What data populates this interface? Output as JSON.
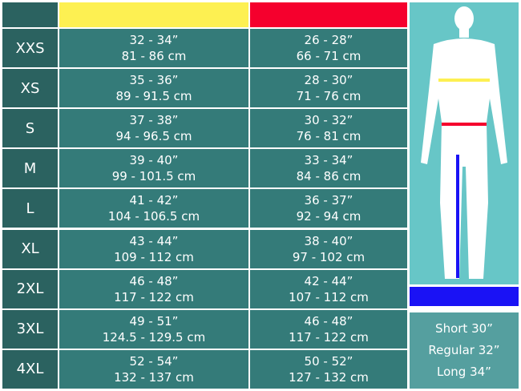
{
  "header": {
    "chest_color": "#fdf052",
    "waist_color": "#f5002d"
  },
  "rows": [
    {
      "size": "XXS",
      "chest_in": "32 - 34”",
      "chest_cm": "81 - 86 cm",
      "waist_in": "26 - 28”",
      "waist_cm": "66 - 71 cm"
    },
    {
      "size": "XS",
      "chest_in": "35 - 36”",
      "chest_cm": "89 - 91.5 cm",
      "waist_in": "28 - 30”",
      "waist_cm": "71 - 76 cm"
    },
    {
      "size": "S",
      "chest_in": "37 - 38”",
      "chest_cm": "94 - 96.5 cm",
      "waist_in": "30 - 32”",
      "waist_cm": "76 - 81 cm"
    },
    {
      "size": "M",
      "chest_in": "39 - 40”",
      "chest_cm": "99 - 101.5 cm",
      "waist_in": "33 - 34”",
      "waist_cm": "84 - 86 cm"
    },
    {
      "size": "L",
      "chest_in": "41 - 42”",
      "chest_cm": "104 - 106.5 cm",
      "waist_in": "36 - 37”",
      "waist_cm": "92 - 94 cm"
    },
    {
      "size": "XL",
      "chest_in": "43 - 44”",
      "chest_cm": "109 - 112 cm",
      "waist_in": "38 - 40”",
      "waist_cm": "97 - 102 cm"
    },
    {
      "size": "2XL",
      "chest_in": "46 - 48”",
      "chest_cm": "117 - 122 cm",
      "waist_in": "42 - 44”",
      "waist_cm": "107 - 112 cm"
    },
    {
      "size": "3XL",
      "chest_in": "49 - 51”",
      "chest_cm": "124.5 - 129.5 cm",
      "waist_in": "46 - 48”",
      "waist_cm": "117 - 122 cm"
    },
    {
      "size": "4XL",
      "chest_in": "52 - 54”",
      "chest_cm": "132 - 137 cm",
      "waist_in": "50 - 52”",
      "waist_cm": "127 - 132 cm"
    }
  ],
  "lengths": {
    "short": "Short 30”",
    "regular": "Regular 32”",
    "long": "Long 34”"
  },
  "inseam_color": "#1a12f5"
}
